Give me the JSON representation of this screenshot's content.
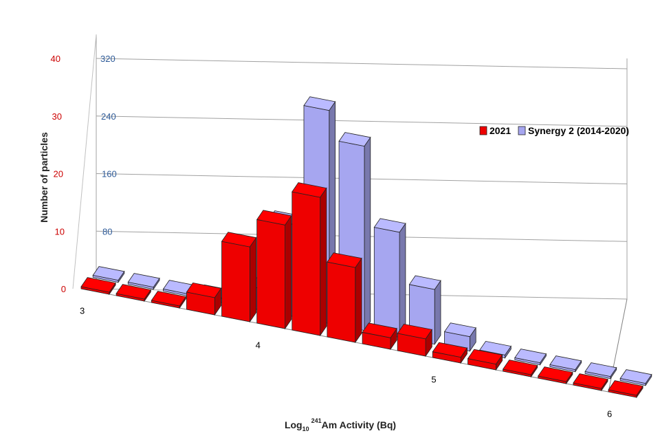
{
  "chart_data": {
    "type": "bar",
    "variant": "3d-depth-grouped",
    "title": "",
    "xlabel_prefix": "Log",
    "xlabel_sub": "10",
    "xlabel_sup": "241",
    "xlabel_rest": "Am Activity (Bq)",
    "ylabel": "Number of particles",
    "x_ticks": [
      "3",
      "4",
      "5",
      "6"
    ],
    "y_left_ticks": [
      "0",
      "10",
      "20",
      "30",
      "40"
    ],
    "y_right_ticks": [
      "80",
      "160",
      "240",
      "320"
    ],
    "ylim_left": [
      0,
      40
    ],
    "ylim_right": [
      0,
      320
    ],
    "bin_width": 0.2,
    "bin_starts": [
      3.0,
      3.2,
      3.4,
      3.6,
      3.8,
      4.0,
      4.2,
      4.4,
      4.6,
      4.8,
      5.0,
      5.2,
      5.4,
      5.6,
      5.8,
      6.0
    ],
    "legend_position": "top-right",
    "series": [
      {
        "name": "2021",
        "axis": "left",
        "color": "#ee0000",
        "values": [
          0,
          0,
          0,
          3,
          13,
          18,
          24,
          13,
          2,
          3,
          1,
          1,
          0,
          0,
          0,
          0
        ]
      },
      {
        "name": "Synergy 2 (2014-2020)",
        "axis": "right",
        "color": "#a6a6f0",
        "values": [
          0,
          0,
          0,
          6,
          30,
          128,
          296,
          256,
          146,
          76,
          20,
          4,
          0,
          0,
          0,
          0
        ]
      }
    ]
  }
}
